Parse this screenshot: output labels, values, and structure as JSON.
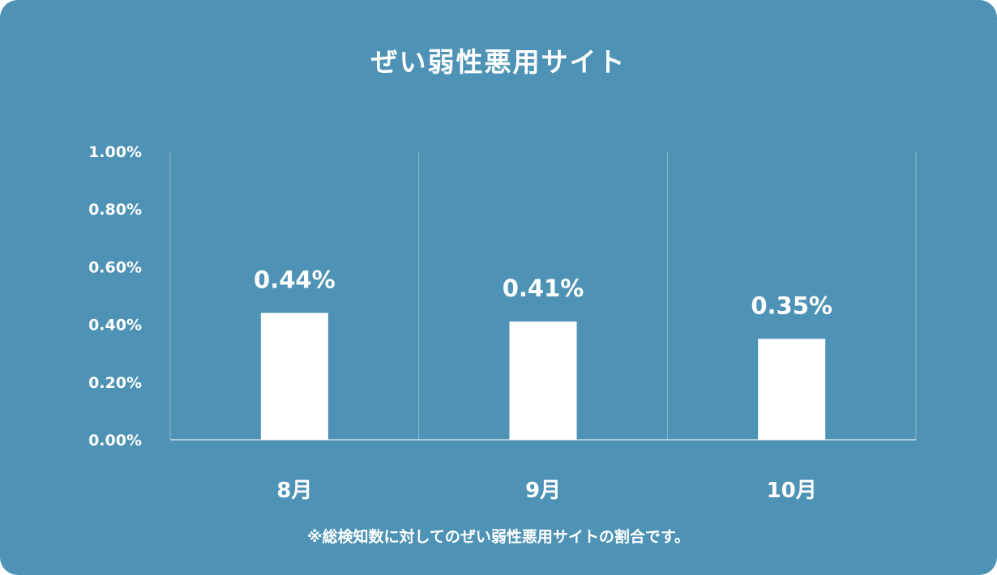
{
  "chart_data": {
    "type": "bar",
    "title": "ぜい弱性悪用サイト",
    "categories": [
      "8月",
      "9月",
      "10月"
    ],
    "values": [
      0.44,
      0.41,
      0.35
    ],
    "value_labels": [
      "0.44%",
      "0.41%",
      "0.35%"
    ],
    "y_ticks": [
      0,
      0.2,
      0.4,
      0.6,
      0.8,
      1.0
    ],
    "y_tick_labels": [
      "0.00%",
      "0.20%",
      "0.40%",
      "0.60%",
      "0.80%",
      "1.00%"
    ],
    "ylim": [
      0,
      1.0
    ],
    "xlabel": "",
    "ylabel": "",
    "grid": true,
    "note": "※総検知数に対してのぜい弱性悪用サイトの割合です。"
  },
  "colors": {
    "background": "#4e93b6",
    "bar": "#ffffff",
    "text": "#ffffff",
    "gridline": "#8dbad0",
    "axis": "#c8dfea"
  }
}
